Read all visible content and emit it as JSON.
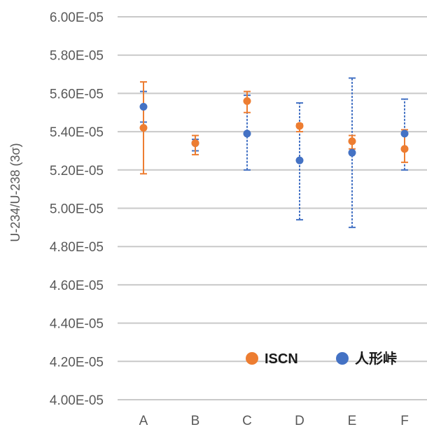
{
  "chart_data": {
    "type": "scatter",
    "categories": [
      "A",
      "B",
      "C",
      "D",
      "E",
      "F"
    ],
    "ylabel": "U-234/U-238 (3σ)",
    "ylim": [
      4e-05,
      6e-05
    ],
    "yticks": [
      {
        "value": 4e-05,
        "label": "4.00E-05"
      },
      {
        "value": 4.2e-05,
        "label": "4.20E-05"
      },
      {
        "value": 4.4e-05,
        "label": "4.40E-05"
      },
      {
        "value": 4.6e-05,
        "label": "4.60E-05"
      },
      {
        "value": 4.8e-05,
        "label": "4.80E-05"
      },
      {
        "value": 5e-05,
        "label": "5.00E-05"
      },
      {
        "value": 5.2e-05,
        "label": "5.20E-05"
      },
      {
        "value": 5.4e-05,
        "label": "5.40E-05"
      },
      {
        "value": 5.6e-05,
        "label": "5.60E-05"
      },
      {
        "value": 5.8e-05,
        "label": "5.80E-05"
      },
      {
        "value": 6e-05,
        "label": "6.00E-05"
      }
    ],
    "grid": "horizontal",
    "legend_position": "bottom-right",
    "series": [
      {
        "name": "ISCN",
        "color": "#ED7D31",
        "errorbar_style": "solid",
        "values": [
          5.42e-05,
          5.34e-05,
          5.56e-05,
          5.43e-05,
          5.35e-05,
          5.31e-05
        ],
        "err_low": [
          5.18e-05,
          5.28e-05,
          5.5e-05,
          5.4e-05,
          5.31e-05,
          5.24e-05
        ],
        "err_high": [
          5.66e-05,
          5.38e-05,
          5.61e-05,
          5.44e-05,
          5.38e-05,
          5.41e-05
        ]
      },
      {
        "name": "人形峠",
        "color": "#4472C4",
        "errorbar_style": "dashed",
        "values": [
          5.53e-05,
          5.34e-05,
          5.39e-05,
          5.25e-05,
          5.29e-05,
          5.39e-05
        ],
        "err_low": [
          5.45e-05,
          5.3e-05,
          5.2e-05,
          4.94e-05,
          4.9e-05,
          5.2e-05
        ],
        "err_high": [
          5.61e-05,
          5.36e-05,
          5.59e-05,
          5.55e-05,
          5.68e-05,
          5.57e-05
        ]
      }
    ]
  }
}
